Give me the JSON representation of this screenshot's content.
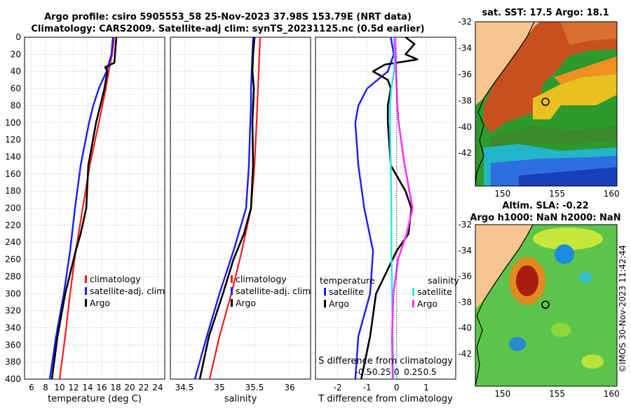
{
  "header": {
    "line1": "Argo profile: csiro 5905553_58 25-Nov-2023 37.98S 153.79E (NRT data)",
    "line2": "Climatology: CARS2009. Satellite-adj clim: synTS_20231125.nc (0.5d earlier)"
  },
  "colors": {
    "climatology": "#ff1a1a",
    "satellite": "#1a1aff",
    "argo": "#000000",
    "satellite_s": "#33e6e6",
    "argo_s": "#ff33ff"
  },
  "chart_data": [
    {
      "type": "line",
      "id": "temperature",
      "xlabel": "temperature (deg C)",
      "ylabel": "",
      "xlim": [
        5,
        25
      ],
      "ylim": [
        0,
        400
      ],
      "xticks": [
        6,
        8,
        10,
        12,
        14,
        16,
        18,
        20,
        22,
        24
      ],
      "yticks": [
        0,
        20,
        40,
        60,
        80,
        100,
        120,
        140,
        160,
        180,
        200,
        220,
        240,
        260,
        280,
        300,
        320,
        340,
        360,
        380,
        400
      ],
      "legend": [
        "climatology",
        "satellite-adj. clim",
        "Argo"
      ],
      "series": [
        {
          "name": "climatology",
          "depth": [
            0,
            20,
            40,
            60,
            80,
            100,
            150,
            200,
            250,
            300,
            350,
            400
          ],
          "values": [
            17.8,
            17.5,
            17.0,
            16.6,
            16.1,
            15.6,
            14.3,
            13.3,
            12.3,
            11.5,
            10.8,
            10.0
          ]
        },
        {
          "name": "satellite-adj. clim",
          "depth": [
            0,
            20,
            40,
            60,
            80,
            100,
            150,
            200,
            250,
            300,
            350,
            400
          ],
          "values": [
            17.6,
            17.4,
            16.7,
            15.6,
            14.8,
            14.2,
            13.0,
            12.2,
            11.5,
            10.6,
            9.5,
            8.6
          ]
        },
        {
          "name": "Argo",
          "depth": [
            0,
            10,
            20,
            30,
            35,
            40,
            60,
            80,
            100,
            150,
            200,
            230,
            250,
            300,
            350,
            400
          ],
          "values": [
            18.1,
            18.0,
            17.9,
            17.8,
            16.5,
            16.8,
            16.4,
            15.8,
            15.2,
            14.1,
            13.8,
            13.0,
            12.3,
            10.8,
            9.7,
            8.9
          ]
        }
      ]
    },
    {
      "type": "line",
      "id": "salinity",
      "xlabel": "salinity",
      "xlim": [
        34.3,
        36.3
      ],
      "ylim": [
        0,
        400
      ],
      "xticks": [
        34.5,
        35,
        35.5,
        36
      ],
      "xticklabels": [
        "34.5",
        "35",
        "35.5",
        "36"
      ],
      "legend": [
        "climatology",
        "satellite-adj. clim",
        "Argo"
      ],
      "series": [
        {
          "name": "climatology",
          "depth": [
            0,
            20,
            40,
            60,
            80,
            100,
            150,
            200,
            250,
            300,
            350,
            400
          ],
          "values": [
            35.58,
            35.57,
            35.56,
            35.55,
            35.54,
            35.53,
            35.5,
            35.45,
            35.32,
            35.17,
            35.0,
            34.86
          ]
        },
        {
          "name": "satellite-adj. clim",
          "depth": [
            0,
            20,
            40,
            60,
            80,
            100,
            150,
            200,
            250,
            300,
            350,
            400
          ],
          "values": [
            35.48,
            35.47,
            35.46,
            35.45,
            35.45,
            35.44,
            35.42,
            35.38,
            35.2,
            35.0,
            34.82,
            34.65
          ]
        },
        {
          "name": "Argo",
          "depth": [
            0,
            20,
            40,
            60,
            80,
            100,
            150,
            200,
            230,
            260,
            300,
            350,
            400
          ],
          "values": [
            35.5,
            35.48,
            35.47,
            35.49,
            35.48,
            35.47,
            35.48,
            35.45,
            35.35,
            35.2,
            35.05,
            34.85,
            34.72
          ]
        }
      ]
    },
    {
      "type": "line",
      "id": "difference",
      "xlabel": "T difference from climatology",
      "xlabel_top": "S difference from climatology",
      "xlim": [
        -2.75,
        2.0
      ],
      "ylim": [
        0,
        400
      ],
      "xticks": [
        -2,
        -1,
        0,
        1
      ],
      "xticklabels": [
        "-2",
        "-1",
        "0",
        "1"
      ],
      "sxticks": [
        -0.5,
        -0.25,
        0,
        0.25,
        0.5
      ],
      "sxticklabels": [
        "-0.5",
        "-0.25",
        "0",
        "0.25",
        "0.5"
      ],
      "legend_left": {
        "title": "temperature",
        "items": [
          "satellite",
          "Argo"
        ]
      },
      "legend_right": {
        "title": "salinity",
        "items": [
          "satellite",
          "Argo"
        ]
      },
      "series": [
        {
          "name": "temperature satellite",
          "depth": [
            0,
            20,
            40,
            60,
            80,
            100,
            150,
            200,
            250,
            300,
            350,
            400
          ],
          "values": [
            -0.2,
            -0.1,
            -0.3,
            -1.0,
            -1.3,
            -1.4,
            -1.3,
            -1.1,
            -0.8,
            -0.9,
            -1.3,
            -1.4
          ]
        },
        {
          "name": "temperature Argo",
          "depth": [
            0,
            8,
            20,
            26,
            32,
            40,
            50,
            60,
            80,
            100,
            150,
            180,
            200,
            230,
            250,
            300,
            350,
            400
          ],
          "values": [
            0.3,
            0.6,
            0.3,
            0.7,
            -0.4,
            -0.8,
            -0.3,
            -0.2,
            -0.3,
            -0.3,
            -0.2,
            0.3,
            0.5,
            0.4,
            0.0,
            -0.7,
            -0.9,
            -1.2
          ]
        },
        {
          "name": "salinity satellite",
          "depth": [
            0,
            20,
            40,
            60,
            80,
            100,
            150,
            200,
            250,
            300,
            350,
            400
          ],
          "values": [
            -0.04,
            -0.03,
            -0.04,
            -0.08,
            -0.1,
            -0.1,
            -0.09,
            -0.08,
            -0.08,
            -0.07,
            -0.06,
            -0.05
          ]
        },
        {
          "name": "salinity Argo",
          "depth": [
            0,
            20,
            40,
            60,
            80,
            100,
            150,
            200,
            230,
            260,
            300,
            350,
            400
          ],
          "values": [
            -0.03,
            -0.02,
            -0.01,
            0.0,
            0.01,
            0.03,
            0.12,
            0.24,
            0.15,
            0.02,
            -0.05,
            -0.07,
            -0.06
          ]
        }
      ]
    },
    {
      "type": "heatmap",
      "id": "sst-map",
      "title": "sat. SST: 17.5 Argo: 18.1",
      "xticks": [
        150,
        155,
        160
      ],
      "yticks": [
        -32,
        -34,
        -36,
        -38,
        -40,
        -42
      ],
      "xlim": [
        147.5,
        160.5
      ],
      "ylim": [
        -44.5,
        -32
      ],
      "marker": {
        "lon": 153.79,
        "lat": -37.98
      }
    },
    {
      "type": "heatmap",
      "id": "sla-map",
      "title": "Altim. SLA: -0.22",
      "subtitle": "Argo h1000: NaN h2000: NaN",
      "xticks": [
        150,
        155,
        160
      ],
      "yticks": [
        -32,
        -34,
        -36,
        -38,
        -40,
        -42
      ],
      "xlim": [
        147.5,
        160.5
      ],
      "ylim": [
        -44.5,
        -32
      ],
      "marker": {
        "lon": 153.79,
        "lat": -37.98
      }
    }
  ],
  "side_label": "©IMOS 30-Nov-2023 11:42:44"
}
